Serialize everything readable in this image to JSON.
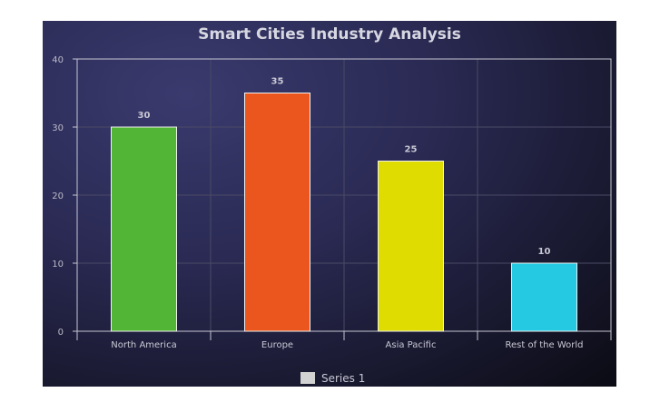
{
  "chart_data": {
    "type": "bar",
    "title": "Smart Cities Industry Analysis",
    "categories": [
      "North America",
      "Europe",
      "Asia Pacific",
      "Rest of the World"
    ],
    "series": [
      {
        "name": "Series 1",
        "values": [
          30,
          35,
          25,
          10
        ]
      }
    ],
    "bar_colors": [
      "#52b536",
      "#ea561d",
      "#dedc00",
      "#25cae2"
    ],
    "ylim": [
      0,
      40
    ],
    "yticks": [
      0,
      10,
      20,
      30,
      40
    ],
    "grid": true,
    "legend_position": "bottom-center",
    "legend_color": "#d2d2d2",
    "data_labels": true
  }
}
